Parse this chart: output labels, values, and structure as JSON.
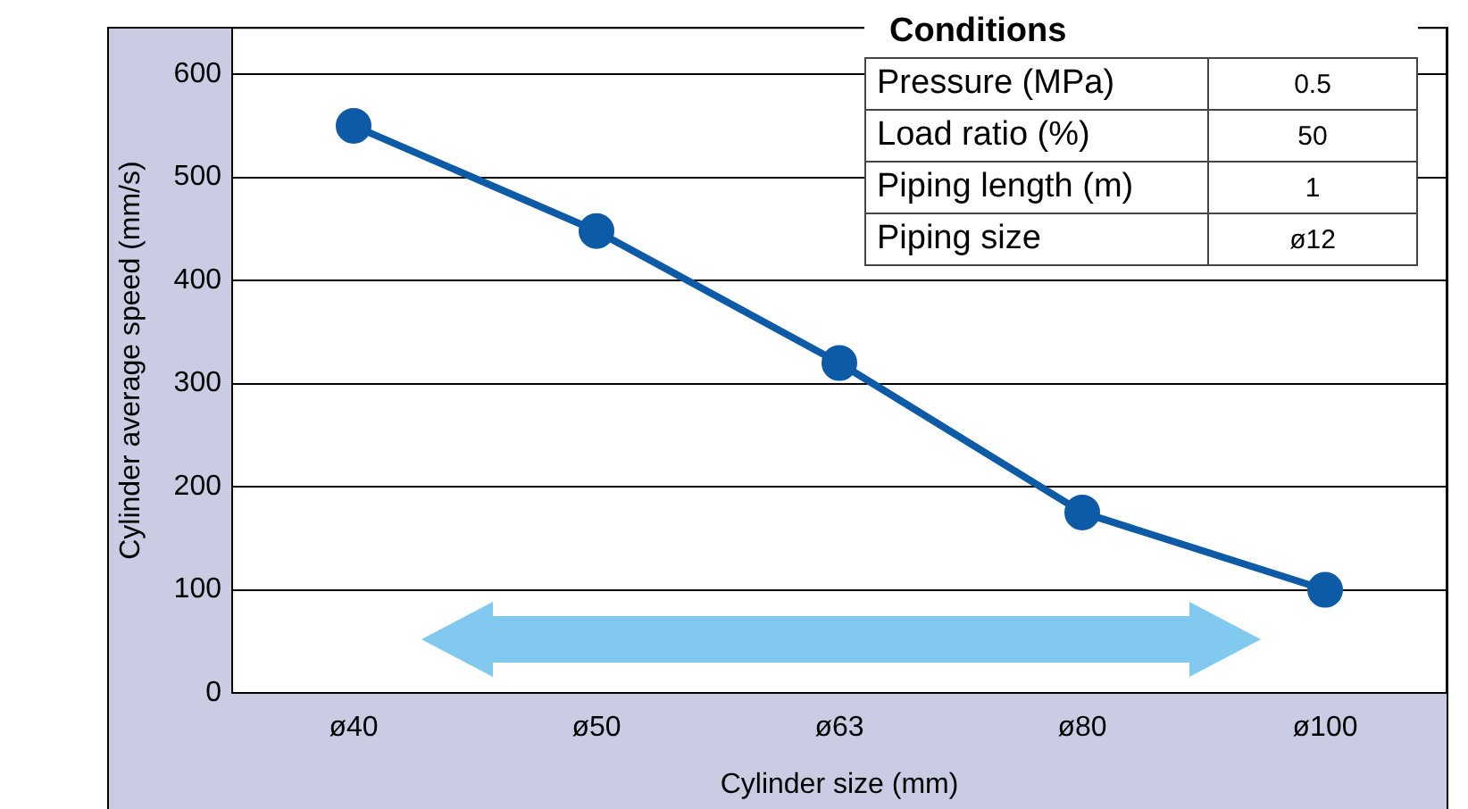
{
  "chart_data": {
    "type": "line",
    "xlabel": "Cylinder size (mm)",
    "ylabel": "Cylinder average speed (mm/s)",
    "categories": [
      "ø40",
      "ø50",
      "ø63",
      "ø80",
      "ø100"
    ],
    "series": [
      {
        "color": "#0d5aa7",
        "values": [
          550,
          448,
          320,
          175,
          100
        ]
      }
    ],
    "ylim": [
      0,
      645
    ],
    "yticks": [
      0,
      100,
      200,
      300,
      400,
      500,
      600
    ],
    "grid": "y",
    "legend": false,
    "marker": "circle",
    "line_style": "solid",
    "annotations": [
      "Conditions",
      "Pressure (MPa)",
      "0.5",
      "Load ratio (%)",
      "50",
      "Piping length (m)",
      "1",
      "Piping size",
      "ø12"
    ]
  }
}
